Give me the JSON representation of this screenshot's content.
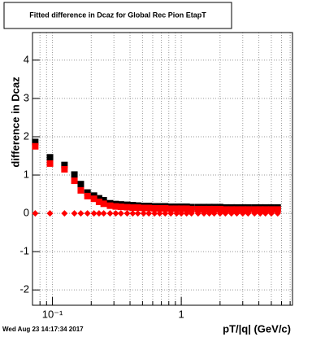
{
  "chart_data": {
    "type": "scatter",
    "title": "Fitted difference in Dcaz for Global Rec Pion EtapT",
    "x_label": "pT/|q| (GeV/c)",
    "y_label": "difference in Dcaz",
    "footer": "Wed Aug 23 14:17:34 2017",
    "x": [
      0.0735,
      0.0957,
      0.124,
      0.148,
      0.166,
      0.187,
      0.21,
      0.23,
      0.25,
      0.28,
      0.31,
      0.34,
      0.38,
      0.42,
      0.46,
      0.51,
      0.56,
      0.62,
      0.68,
      0.75,
      0.83,
      0.92,
      1.0,
      1.1,
      1.2,
      1.35,
      1.5,
      1.65,
      1.8,
      2.0,
      2.2,
      2.45,
      2.7,
      3.0,
      3.3,
      3.7,
      4.1,
      4.5,
      5.0,
      5.6
    ],
    "series": [
      {
        "color": "#000000",
        "marker": "square",
        "values": [
          1.82,
          1.42,
          1.22,
          0.97,
          0.72,
          0.5,
          0.42,
          0.35,
          0.3,
          0.22,
          0.2,
          0.19,
          0.18,
          0.17,
          0.16,
          0.15,
          0.15,
          0.14,
          0.14,
          0.14,
          0.13,
          0.13,
          0.13,
          0.13,
          0.12,
          0.12,
          0.12,
          0.12,
          0.12,
          0.12,
          0.11,
          0.11,
          0.11,
          0.11,
          0.11,
          0.11,
          0.11,
          0.11,
          0.11,
          0.11
        ]
      },
      {
        "color": "#ff0000",
        "marker": "square",
        "values": [
          1.75,
          1.3,
          1.15,
          0.85,
          0.6,
          0.45,
          0.38,
          0.3,
          0.25,
          0.2,
          0.18,
          0.17,
          0.16,
          0.15,
          0.15,
          0.14,
          0.14,
          0.13,
          0.13,
          0.13,
          0.12,
          0.12,
          0.12,
          0.12,
          0.11,
          0.11,
          0.11,
          0.11,
          0.11,
          0.11,
          0.1,
          0.1,
          0.1,
          0.1,
          0.1,
          0.1,
          0.1,
          0.1,
          0.1,
          0.1
        ]
      },
      {
        "color": "#ff0000",
        "marker": "diamond",
        "values": [
          0,
          0,
          0,
          0,
          0,
          0,
          0,
          0,
          0,
          0,
          0,
          0,
          0,
          0,
          0,
          0,
          0,
          0,
          0,
          0,
          0,
          0,
          0,
          0,
          0,
          0,
          0,
          0,
          0,
          0,
          0,
          0,
          0,
          0,
          0,
          0,
          0,
          0,
          0,
          0
        ]
      }
    ],
    "xlog": true,
    "xlim": [
      0.07,
      7.3
    ],
    "xticks": [
      {
        "value": 0.1,
        "label": "10⁻¹"
      },
      1
    ],
    "xminor_ticks": [
      0.08,
      0.09,
      0.2,
      0.3,
      0.4,
      0.5,
      0.6,
      0.7,
      0.8,
      0.9,
      2,
      3,
      4,
      5,
      6,
      7
    ],
    "ylim": [
      -2.4,
      4.72
    ],
    "yticks": [
      -2,
      -1,
      0,
      1,
      2,
      3,
      4
    ],
    "grid": true
  }
}
